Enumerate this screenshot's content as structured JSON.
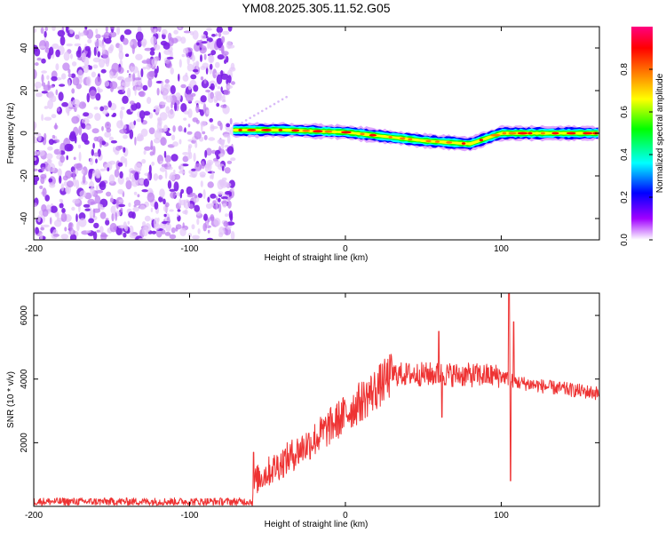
{
  "page_title": "YM08.2025.305.11.52.G05",
  "chart_data": [
    {
      "type": "heatmap",
      "title": "YM08.2025.305.11.52.G05",
      "xlabel": "Height of straight line (km)",
      "ylabel": "Frequency (Hz)",
      "xlim": [
        -200,
        163
      ],
      "ylim": [
        -50,
        50
      ],
      "x_ticks": [
        -200,
        -100,
        0,
        100
      ],
      "y_ticks": [
        -40,
        -20,
        0,
        20,
        40
      ],
      "noise_region_x": [
        -200,
        -72
      ],
      "signal_track": {
        "x_start": -72,
        "x_end": 163,
        "frequency_hz": [
          {
            "x": -72,
            "f": 1.5
          },
          {
            "x": -40,
            "f": 1.5
          },
          {
            "x": 0,
            "f": 0.5
          },
          {
            "x": 50,
            "f": -3.5
          },
          {
            "x": 80,
            "f": -5
          },
          {
            "x": 100,
            "f": 0
          },
          {
            "x": 163,
            "f": 0
          }
        ]
      },
      "colorbar": {
        "label": "Normalized spectral amplitude",
        "ticks": [
          0.0,
          0.2,
          0.4,
          0.6,
          0.8
        ],
        "range": [
          0,
          1
        ],
        "colors": [
          "#ffffff",
          "#a000ff",
          "#0000ff",
          "#00ffff",
          "#00ff00",
          "#ffff00",
          "#ff8000",
          "#ff0000",
          "#ff0080"
        ]
      }
    },
    {
      "type": "line",
      "title": "",
      "xlabel": "Height of straight line (km)",
      "ylabel": "SNR (10 * v/v)",
      "xlim": [
        -200,
        163
      ],
      "ylim": [
        0,
        6700
      ],
      "x_ticks": [
        -200,
        -100,
        0,
        100
      ],
      "y_ticks": [
        2000,
        4000,
        6000
      ],
      "series": [
        {
          "name": "SNR",
          "color": "#ee3333",
          "profile": [
            [
              -200,
              150
            ],
            [
              -60,
              150
            ],
            [
              -58,
              800
            ],
            [
              -40,
              1400
            ],
            [
              -20,
              2100
            ],
            [
              0,
              2900
            ],
            [
              20,
              3700
            ],
            [
              30,
              4150
            ],
            [
              60,
              4150
            ],
            [
              100,
              4100
            ],
            [
              110,
              3900
            ],
            [
              130,
              3750
            ],
            [
              163,
              3550
            ]
          ],
          "spikes": [
            [
              -59,
              1700
            ],
            [
              60,
              5500
            ],
            [
              62,
              2800
            ],
            [
              105,
              6700
            ],
            [
              106,
              800
            ],
            [
              108,
              5800
            ]
          ]
        }
      ]
    }
  ]
}
